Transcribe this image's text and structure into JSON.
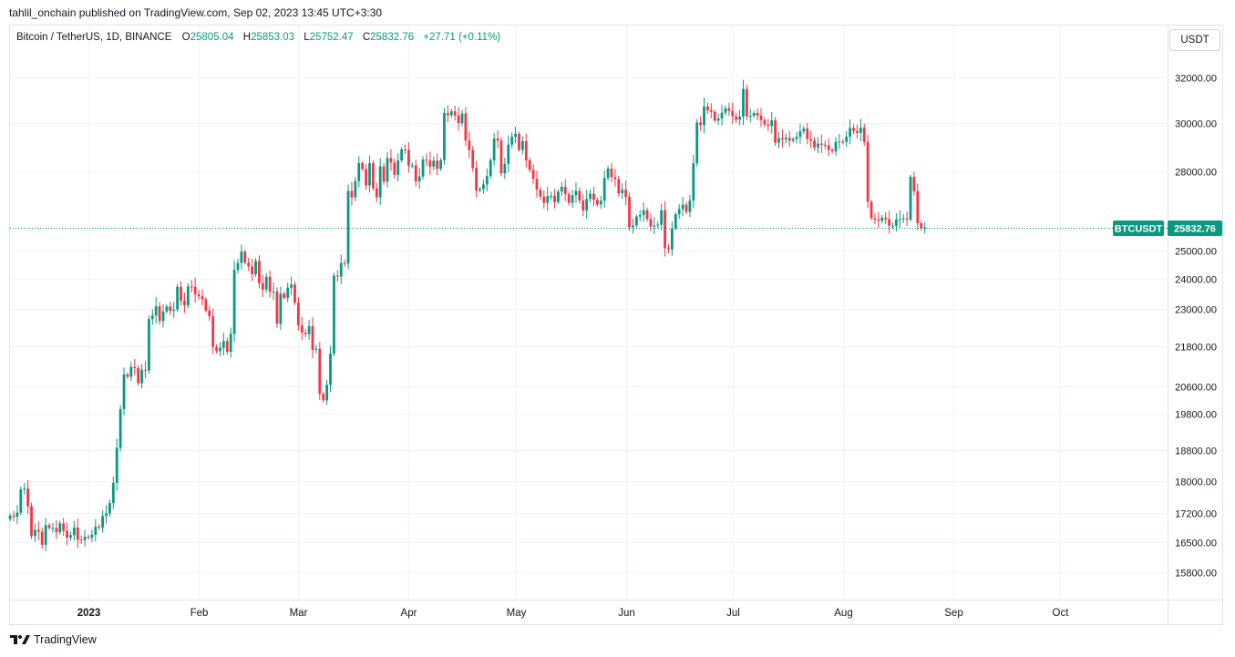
{
  "header": {
    "publish_line": "tahlil_onchain published on TradingView.com, Sep 02, 2023 13:45 UTC+3:30"
  },
  "legend": {
    "symbol": "Bitcoin / TetherUS, 1D, BINANCE",
    "o_label": "O",
    "o_value": "25805.04",
    "h_label": "H",
    "h_value": "25853.03",
    "l_label": "L",
    "l_value": "25752.47",
    "c_label": "C",
    "c_value": "25832.76",
    "change": "+27.71 (+0.11%)"
  },
  "currency_button": "USDT",
  "price_tag": {
    "symbol": "BTCUSDT",
    "price": "25832.76"
  },
  "branding": {
    "logo_text": "TradingView"
  },
  "colors": {
    "up": "#089981",
    "down": "#f23645",
    "grid": "#f0f3fa",
    "axis_text": "#131722",
    "frame": "#e0e3eb"
  },
  "chart_data": {
    "type": "candlestick",
    "symbol": "BTCUSDT",
    "interval": "1D",
    "exchange": "BINANCE",
    "y_scale": "log",
    "ylim": [
      15300,
      33300
    ],
    "y_ticks": [
      "32000.00",
      "30000.00",
      "28000.00",
      "25000.00",
      "24000.00",
      "23000.00",
      "21800.00",
      "20600.00",
      "19800.00",
      "18800.00",
      "18000.00",
      "17200.00",
      "16500.00",
      "15800.00"
    ],
    "x_ticks": [
      {
        "date": "2023-01-01",
        "label": "2023"
      },
      {
        "date": "2023-02-01",
        "label": "Feb"
      },
      {
        "date": "2023-03-01",
        "label": "Mar"
      },
      {
        "date": "2023-04-01",
        "label": "Apr"
      },
      {
        "date": "2023-05-01",
        "label": "May"
      },
      {
        "date": "2023-06-01",
        "label": "Jun"
      },
      {
        "date": "2023-07-01",
        "label": "Jul"
      },
      {
        "date": "2023-08-01",
        "label": "Aug"
      },
      {
        "date": "2023-09-01",
        "label": "Sep"
      },
      {
        "date": "2023-10-01",
        "label": "Oct"
      }
    ],
    "last_price": 25832.76,
    "first_date": "2022-12-10",
    "closes": [
      17130,
      17100,
      17200,
      17780,
      17800,
      17360,
      16640,
      16780,
      16740,
      16430,
      16900,
      16830,
      16830,
      16730,
      16940,
      16760,
      16600,
      16660,
      16840,
      16550,
      16540,
      16620,
      16600,
      16670,
      16860,
      16840,
      17120,
      17180,
      17440,
      17950,
      18870,
      19940,
      20950,
      20880,
      21180,
      21140,
      20690,
      21090,
      21070,
      22670,
      22790,
      23090,
      22610,
      22920,
      23080,
      22940,
      22980,
      23740,
      23270,
      23120,
      23750,
      23740,
      23490,
      23420,
      23320,
      22950,
      22760,
      21790,
      21660,
      21760,
      21970,
      21640,
      22200,
      24320,
      24560,
      24960,
      24570,
      24440,
      24170,
      24630,
      23860,
      23650,
      24080,
      23570,
      23580,
      22520,
      23510,
      23370,
      23710,
      23820,
      23210,
      22470,
      22240,
      22190,
      22440,
      21700,
      21730,
      20380,
      20190,
      20640,
      21580,
      24120,
      24090,
      24560,
      24540,
      27220,
      26970,
      27600,
      28320,
      28080,
      27430,
      28320,
      27320,
      26970,
      28190,
      27580,
      28520,
      28340,
      27850,
      28430,
      28880,
      28860,
      28220,
      28230,
      27590,
      27790,
      28460,
      28420,
      28180,
      28420,
      28090,
      28440,
      30420,
      30320,
      30490,
      30310,
      29980,
      30400,
      29250,
      28850,
      28130,
      27230,
      27290,
      27470,
      27800,
      28430,
      29330,
      29240,
      27910,
      28290,
      29080,
      29400,
      29530,
      28860,
      29220,
      28430,
      28050,
      27690,
      27260,
      27000,
      26760,
      27020,
      27030,
      26790,
      27190,
      27380,
      27090,
      26760,
      27050,
      27220,
      26850,
      26470,
      26910,
      27110,
      26880,
      26700,
      26840,
      27720,
      28100,
      27760,
      27680,
      27130,
      27270,
      26990,
      25850,
      25910,
      26240,
      26300,
      26480,
      26150,
      25870,
      25910,
      25940,
      26480,
      25080,
      25040,
      25800,
      26330,
      26520,
      26690,
      26420,
      26850,
      28310,
      30010,
      29900,
      30700,
      30540,
      30470,
      30090,
      30180,
      30430,
      30620,
      30510,
      30280,
      30130,
      30260,
      31480,
      30280,
      30300,
      30420,
      30300,
      30110,
      29920,
      29860,
      30100,
      29160,
      29340,
      29290,
      29360,
      29240,
      29310,
      29400,
      29630,
      29750,
      29310,
      29240,
      28960,
      29120,
      29070,
      29050,
      28860,
      28800,
      29190,
      29200,
      29190,
      29410,
      29780,
      29650,
      29570,
      29780,
      29190,
      26800,
      26180,
      26130,
      26080,
      26200,
      26140,
      25900,
      25900,
      26130,
      26140,
      26170,
      26130,
      27770,
      27210,
      25990,
      25800,
      25832.76
    ]
  }
}
